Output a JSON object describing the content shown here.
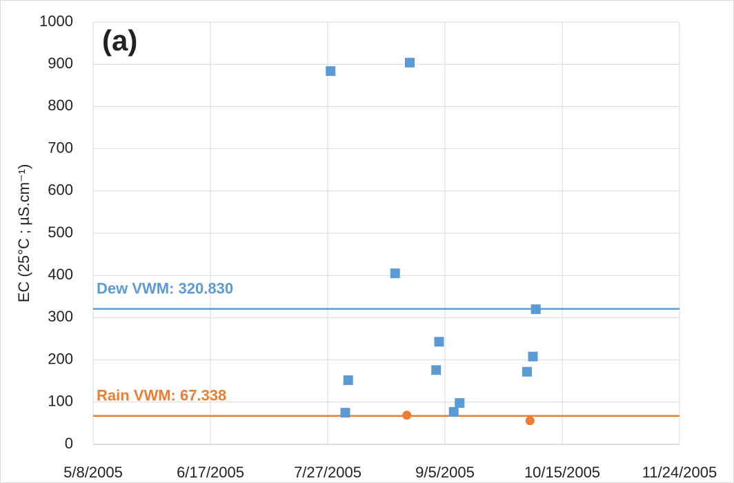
{
  "chart_data": {
    "type": "scatter",
    "panel_label": "(a)",
    "y_label": "EC (25°C ; µS.cm⁻¹)",
    "xlim": [
      "5/8/2005",
      "11/24/2005"
    ],
    "xticks": [
      "5/8/2005",
      "6/17/2005",
      "7/27/2005",
      "9/5/2005",
      "10/15/2005",
      "11/24/2005"
    ],
    "ylim": [
      0,
      1000
    ],
    "yticks": [
      0,
      100,
      200,
      300,
      400,
      500,
      600,
      700,
      800,
      900,
      1000
    ],
    "grid": true,
    "series": [
      {
        "name": "Dew",
        "color": "#5b9bd5",
        "marker": "square",
        "x": [
          "7/28/2005",
          "8/2/2005",
          "8/3/2005",
          "8/19/2005",
          "8/24/2005",
          "9/2/2005",
          "9/3/2005",
          "9/8/2005",
          "9/10/2005",
          "10/3/2005",
          "10/5/2005",
          "10/6/2005"
        ],
        "values": [
          884,
          75,
          152,
          405,
          904,
          176,
          243,
          77,
          98,
          172,
          208,
          320
        ]
      },
      {
        "name": "Rain",
        "color": "#ed7d31",
        "marker": "circle",
        "x": [
          "8/23/2005",
          "10/4/2005"
        ],
        "values": [
          69,
          56
        ]
      }
    ],
    "reference_lines": [
      {
        "label": "Dew VWM: 320.830",
        "value": 320.83,
        "color": "#5b9bd5"
      },
      {
        "label": "Rain VWM: 67.338",
        "value": 67.338,
        "color": "#ed7d31"
      }
    ]
  }
}
